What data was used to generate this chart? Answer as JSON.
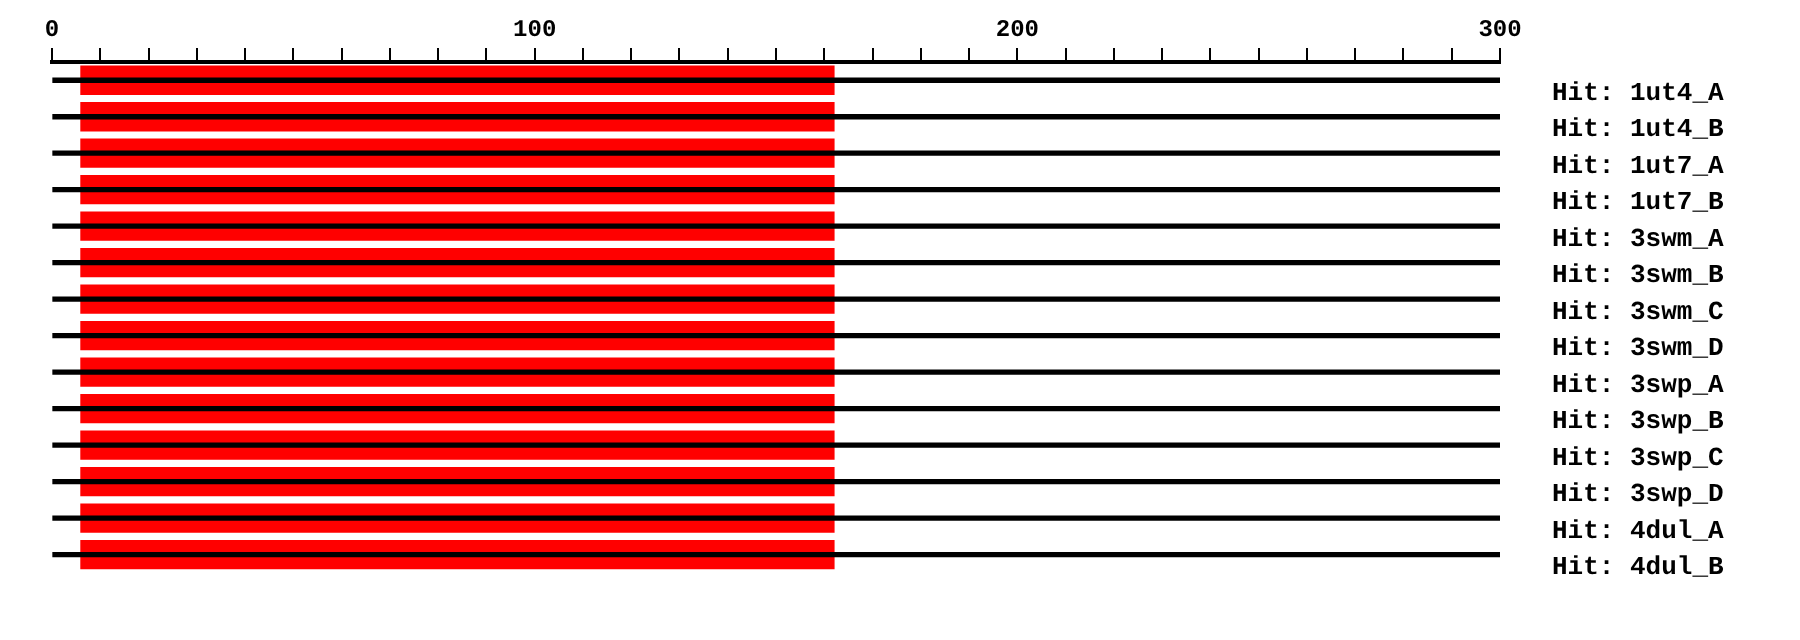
{
  "chart_data": {
    "type": "bar",
    "orientation": "horizontal",
    "categories": [
      "Hit: 1ut4_A",
      "Hit: 1ut4_B",
      "Hit: 1ut7_A",
      "Hit: 1ut7_B",
      "Hit: 3swm_A",
      "Hit: 3swm_B",
      "Hit: 3swm_C",
      "Hit: 3swm_D",
      "Hit: 3swp_A",
      "Hit: 3swp_B",
      "Hit: 3swp_C",
      "Hit: 3swp_D",
      "Hit: 4dul_A",
      "Hit: 4dul_B"
    ],
    "series": [
      {
        "color": "#000000",
        "base": [
          0,
          0,
          0,
          0,
          0,
          0,
          0,
          0,
          0,
          0,
          0,
          0,
          0,
          0
        ],
        "values": [
          300,
          300,
          300,
          300,
          300,
          300,
          300,
          300,
          300,
          300,
          300,
          300,
          300,
          300
        ]
      },
      {
        "color": "#ff0000",
        "base": [
          6,
          6,
          6,
          6,
          6,
          6,
          6,
          6,
          6,
          6,
          6,
          6,
          6,
          6
        ],
        "values": [
          156,
          156,
          156,
          156,
          156,
          156,
          156,
          156,
          156,
          156,
          156,
          156,
          156,
          156
        ]
      }
    ],
    "xlim": [
      0,
      300
    ],
    "xticks": [
      0,
      {
        "value": 10,
        "label": null
      },
      {
        "value": 20,
        "label": null
      },
      {
        "value": 30,
        "label": null
      },
      {
        "value": 40,
        "label": null
      },
      {
        "value": 50,
        "label": null
      },
      {
        "value": 60,
        "label": null
      },
      {
        "value": 70,
        "label": null
      },
      {
        "value": 80,
        "label": null
      },
      {
        "value": 90,
        "label": null
      },
      100,
      {
        "value": 110,
        "label": null
      },
      {
        "value": 120,
        "label": null
      },
      {
        "value": 130,
        "label": null
      },
      {
        "value": 140,
        "label": null
      },
      {
        "value": 150,
        "label": null
      },
      {
        "value": 160,
        "label": null
      },
      {
        "value": 170,
        "label": null
      },
      {
        "value": 180,
        "label": null
      },
      {
        "value": 190,
        "label": null
      },
      200,
      {
        "value": 210,
        "label": null
      },
      {
        "value": 220,
        "label": null
      },
      {
        "value": 230,
        "label": null
      },
      {
        "value": 240,
        "label": null
      },
      {
        "value": 250,
        "label": null
      },
      {
        "value": 260,
        "label": null
      },
      {
        "value": 270,
        "label": null
      },
      {
        "value": 280,
        "label": null
      },
      {
        "value": 290,
        "label": null
      },
      300
    ]
  }
}
